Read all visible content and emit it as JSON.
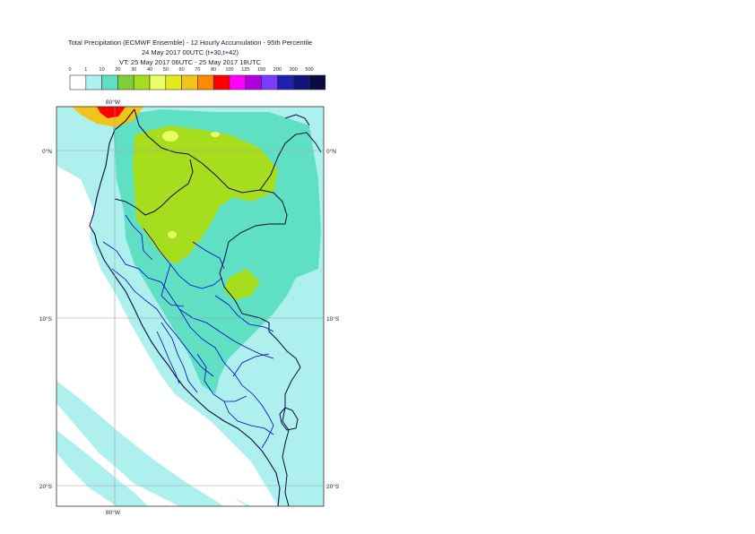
{
  "header": {
    "title_line1": "Total Precipitation (ECMWF Ensemble) - 12 Hourly Accumulation - 95th Percentile",
    "title_line2": "24 May 2017 00UTC (t+30,t+42)",
    "title_line3": "VT: 25 May 2017 06UTC - 25 May 2017 18UTC"
  },
  "legend": {
    "ticks": [
      "0",
      "1",
      "10",
      "20",
      "30",
      "40",
      "50",
      "60",
      "70",
      "80",
      "100",
      "125",
      "150",
      "200",
      "300",
      "500"
    ],
    "colors": [
      "#ffffff",
      "#aef0ee",
      "#5fe0c2",
      "#7fcf3a",
      "#a6de1e",
      "#eaff66",
      "#e6e81c",
      "#f2c31a",
      "#ff8c00",
      "#ff0000",
      "#ff00ff",
      "#b000e0",
      "#7a3cff",
      "#2020b0",
      "#141478",
      "#0a0a40"
    ]
  },
  "map": {
    "lat_labels": [
      "0°N",
      "10°S",
      "20°S"
    ],
    "lon_labels": [
      "80°W",
      "80°W"
    ],
    "colors": {
      "low": "#aef0ee",
      "moderate": "#5fe0c2",
      "heavy": "#a6de1e",
      "very_heavy": "#eaff66",
      "extreme": "#ff0000",
      "coast": "#0a0a40",
      "border": "#0000cc"
    }
  }
}
